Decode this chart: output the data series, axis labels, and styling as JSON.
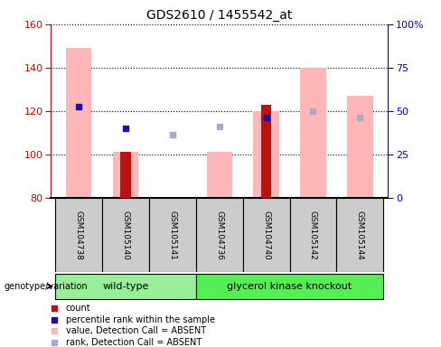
{
  "title": "GDS2610 / 1455542_at",
  "samples": [
    "GSM104738",
    "GSM105140",
    "GSM105141",
    "GSM104736",
    "GSM104740",
    "GSM105142",
    "GSM105144"
  ],
  "pink_bar_values": [
    149,
    101,
    80,
    101,
    120,
    140,
    127
  ],
  "red_bar_values": [
    null,
    101,
    null,
    null,
    123,
    null,
    null
  ],
  "blue_square_values": [
    122,
    112,
    null,
    null,
    117,
    null,
    null
  ],
  "light_blue_square_values": [
    null,
    null,
    109,
    113,
    null,
    120,
    117
  ],
  "ylim_left": [
    80,
    160
  ],
  "ylim_right": [
    0,
    100
  ],
  "yticks_left": [
    80,
    100,
    120,
    140,
    160
  ],
  "yticks_right": [
    0,
    25,
    50,
    75,
    100
  ],
  "ytick_labels_right": [
    "0",
    "25",
    "50",
    "75",
    "100%"
  ],
  "pink_bar_color": "#FFB6B6",
  "red_bar_color": "#BB1111",
  "blue_square_color": "#1111BB",
  "light_blue_square_color": "#AAAACC",
  "left_tick_color": "#CC0000",
  "right_tick_color": "#0000CC",
  "sample_box_color": "#CCCCCC",
  "wild_type_color": "#99EE99",
  "knockout_color": "#55EE55",
  "legend_items": [
    {
      "label": "count",
      "color": "#BB1111"
    },
    {
      "label": "percentile rank within the sample",
      "color": "#1111BB"
    },
    {
      "label": "value, Detection Call = ABSENT",
      "color": "#FFB6B6"
    },
    {
      "label": "rank, Detection Call = ABSENT",
      "color": "#AAAACC"
    }
  ],
  "genotype_label": "genotype/variation",
  "wt_label": "wild-type",
  "ko_label": "glycerol kinase knockout",
  "wt_sample_indices": [
    0,
    1,
    2
  ],
  "ko_sample_indices": [
    3,
    4,
    5,
    6
  ]
}
